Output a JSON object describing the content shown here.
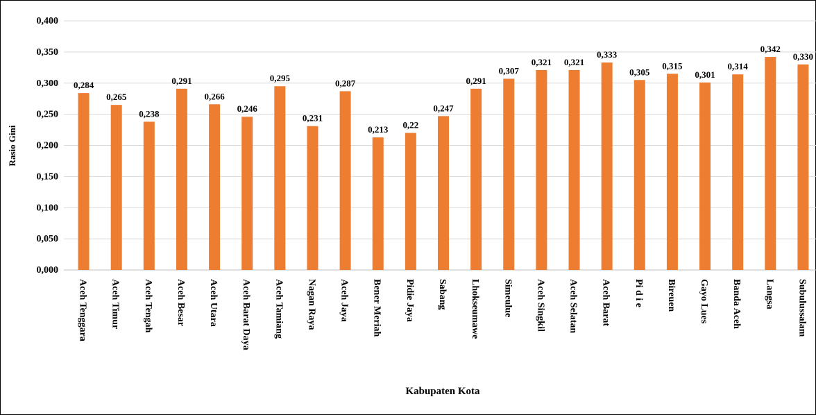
{
  "chart_data": {
    "type": "bar",
    "y_label": "Rasio Gini",
    "x_label": "Kabupaten Kota",
    "categories": [
      "Aceh Tenggara",
      "Aceh Timur",
      "Aceh Tengah",
      "Aceh Besar",
      "Aceh Utara",
      "Aceh Barat Daya",
      "Aceh Tamiang",
      "Nagan Raya",
      "Aceh Jaya",
      "Bener Meriah",
      "Pidie Jaya",
      "Sabang",
      "Lhokseumawe",
      "Simeulue",
      "Aceh Singkil",
      "Aceh Selatan",
      "Aceh Barat",
      "Pi d i e",
      "Bireuen",
      "Gayo Lues",
      "Banda Aceh",
      "Langsa",
      "Subulussalam"
    ],
    "values": [
      0.284,
      0.265,
      0.238,
      0.291,
      0.266,
      0.246,
      0.295,
      0.231,
      0.287,
      0.213,
      0.22,
      0.247,
      0.291,
      0.307,
      0.321,
      0.321,
      0.333,
      0.305,
      0.315,
      0.301,
      0.314,
      0.342,
      0.33
    ],
    "value_labels": [
      "0,284",
      "0,265",
      "0,238",
      "0,291",
      "0,266",
      "0,246",
      "0,295",
      "0,231",
      "0,287",
      "0,213",
      "0,22",
      "0,247",
      "0,291",
      "0,307",
      "0,321",
      "0,321",
      "0,333",
      "0,305",
      "0,315",
      "0,301",
      "0,314",
      "0,342",
      "0,330"
    ],
    "color": "#ed7d31",
    "ylim": [
      0,
      0.4
    ],
    "yticks": [
      {
        "value": 0,
        "label": "0,000"
      },
      {
        "value": 0.05,
        "label": "0,050"
      },
      {
        "value": 0.1,
        "label": "0,100"
      },
      {
        "value": 0.15,
        "label": "0,150"
      },
      {
        "value": 0.2,
        "label": "0,200"
      },
      {
        "value": 0.25,
        "label": "0,250"
      },
      {
        "value": 0.3,
        "label": "0,300"
      },
      {
        "value": 0.35,
        "label": "0,350"
      },
      {
        "value": 0.4,
        "label": "0,400"
      }
    ],
    "grid": true
  }
}
